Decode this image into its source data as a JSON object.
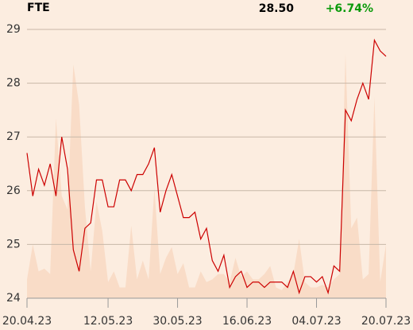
{
  "chart_data": {
    "type": "line",
    "title": "FTE",
    "price": {
      "value": 28.5,
      "label": "28.50"
    },
    "change": {
      "value": 6.74,
      "label": "+6.74%",
      "color": "#0a9a0a"
    },
    "x": [
      0,
      1,
      2,
      3,
      4,
      5,
      6,
      7,
      8,
      9,
      10,
      11,
      12,
      13,
      14,
      15,
      16,
      17,
      18,
      19,
      20,
      21,
      22,
      23,
      24,
      25,
      26,
      27,
      28,
      29,
      30,
      31,
      32,
      33,
      34,
      35,
      36,
      37,
      38,
      39,
      40,
      41,
      42,
      43,
      44,
      45,
      46,
      47,
      48,
      49,
      50,
      51,
      52,
      53,
      54,
      55,
      56,
      57,
      58,
      59,
      60,
      61,
      62
    ],
    "xlim": [
      0,
      62
    ],
    "xticks": [
      {
        "value": 0,
        "label": "20.04.23"
      },
      {
        "value": 14,
        "label": "12.05.23"
      },
      {
        "value": 26,
        "label": "30.05.23"
      },
      {
        "value": 38,
        "label": "16.06.23"
      },
      {
        "value": 50,
        "label": "04.07.23"
      },
      {
        "value": 62,
        "label": "20.07.23"
      }
    ],
    "ylim": [
      24,
      29
    ],
    "yticks": [
      24,
      25,
      26,
      27,
      28,
      29
    ],
    "grid": true,
    "series": [
      {
        "color": "#cc0000",
        "values": [
          26.7,
          25.9,
          26.4,
          26.1,
          26.5,
          25.9,
          27.0,
          26.4,
          24.9,
          24.5,
          25.3,
          25.4,
          26.2,
          26.2,
          25.7,
          25.7,
          26.2,
          26.2,
          26.0,
          26.3,
          26.3,
          26.5,
          26.8,
          25.6,
          26.0,
          26.3,
          25.9,
          25.5,
          25.5,
          25.6,
          25.1,
          25.3,
          24.7,
          24.5,
          24.8,
          24.2,
          24.4,
          24.5,
          24.2,
          24.3,
          24.3,
          24.2,
          24.3,
          24.3,
          24.3,
          24.2,
          24.5,
          24.1,
          24.4,
          24.4,
          24.3,
          24.4,
          24.1,
          24.6,
          24.5,
          27.5,
          27.3,
          27.7,
          28.0,
          27.7,
          28.8,
          28.6,
          28.5
        ]
      }
    ],
    "volume": {
      "color": "#f9dcc7",
      "y2lim": [
        0,
        100
      ],
      "values": [
        7,
        20,
        10,
        11,
        9,
        67,
        38,
        33,
        87,
        72,
        34,
        10,
        36,
        25,
        6,
        10,
        4,
        4,
        27,
        7,
        14,
        7,
        41,
        9,
        15,
        19,
        9,
        13,
        4,
        4,
        10,
        6,
        7,
        9,
        9,
        6,
        15,
        8,
        10,
        7,
        7,
        9,
        12,
        4,
        3,
        6,
        9,
        22,
        6,
        4,
        4,
        5,
        4,
        7,
        9,
        91,
        26,
        30,
        7,
        9,
        75,
        6,
        20
      ]
    }
  }
}
